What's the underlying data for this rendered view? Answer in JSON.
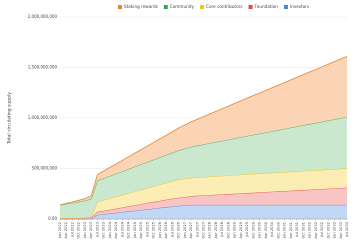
{
  "chart_data": {
    "type": "stacked_area",
    "y_label": "Total circulating supply",
    "categories": [
      "Jan 2022",
      "Apr 2022",
      "Jul 2022",
      "Oct 2022",
      "Jan 2023",
      "Apr 2023",
      "Jul 2023",
      "Oct 2023",
      "Jan 2024",
      "Apr 2024",
      "Jul 2024",
      "Oct 2024",
      "Jan 2025",
      "Apr 2025",
      "Jul 2025",
      "Oct 2025",
      "Jan 2026",
      "Apr 2026",
      "Jul 2026",
      "Oct 2026",
      "Jan 2027",
      "Apr 2027",
      "Jul 2027",
      "Oct 2027",
      "Jan 2028",
      "Apr 2028",
      "Jul 2028",
      "Oct 2028",
      "Jan 2029",
      "Apr 2029",
      "Jul 2029",
      "Oct 2029",
      "Jan 2030",
      "Apr 2030",
      "Jul 2030",
      "Oct 2030",
      "Jan 2031",
      "Apr 2031",
      "Jul 2031",
      "Oct 2031",
      "Jan 2032",
      "Apr 2032",
      "Jul 2032",
      "Oct 2032",
      "Jan 2033",
      "Apr 2033",
      "Jul 2033"
    ],
    "series": [
      {
        "name": "Investors",
        "color": "#4a86d8",
        "fill": "#c2d7f3",
        "values": [
          0,
          0,
          0,
          0,
          0,
          0,
          40000000,
          47000000,
          54000000,
          61000000,
          68000000,
          75000000,
          82000000,
          89000000,
          96000000,
          103000000,
          110000000,
          117000000,
          124000000,
          130000000,
          135000000,
          140000000,
          140000000,
          140000000,
          140000000,
          140000000,
          140000000,
          140000000,
          140000000,
          140000000,
          140000000,
          140000000,
          140000000,
          140000000,
          140000000,
          140000000,
          140000000,
          140000000,
          140000000,
          140000000,
          140000000,
          140000000,
          140000000,
          140000000,
          140000000,
          140000000,
          140000000
        ]
      },
      {
        "name": "Foundation",
        "color": "#e04848",
        "fill": "#f8c4c4",
        "values": [
          10000000,
          10000000,
          10000000,
          10000000,
          12000000,
          14000000,
          30000000,
          34000000,
          38000000,
          42000000,
          46000000,
          50000000,
          54000000,
          58000000,
          62000000,
          66000000,
          70000000,
          74000000,
          78000000,
          80000000,
          83000000,
          87000000,
          90000000,
          93000000,
          97000000,
          100000000,
          103000000,
          107000000,
          110000000,
          113000000,
          117000000,
          120000000,
          123000000,
          127000000,
          130000000,
          133000000,
          137000000,
          140000000,
          143000000,
          147000000,
          150000000,
          153000000,
          157000000,
          160000000,
          163000000,
          167000000,
          170000000
        ]
      },
      {
        "name": "Core contributors",
        "color": "#f2c318",
        "fill": "#fcedb4",
        "values": [
          0,
          0,
          0,
          0,
          0,
          5000000,
          100000000,
          106000000,
          112000000,
          118000000,
          124000000,
          130000000,
          136000000,
          142000000,
          148000000,
          154000000,
          160000000,
          166000000,
          172000000,
          180000000,
          181000000,
          181000000,
          182000000,
          182000000,
          183000000,
          183000000,
          184000000,
          184000000,
          185000000,
          185000000,
          185000000,
          186000000,
          186000000,
          186000000,
          187000000,
          187000000,
          187000000,
          188000000,
          188000000,
          188000000,
          189000000,
          189000000,
          189000000,
          190000000,
          190000000,
          190000000,
          190000000
        ]
      },
      {
        "name": "Community",
        "color": "#3aa655",
        "fill": "#c9e8cd",
        "values": [
          130000000,
          140000000,
          150000000,
          160000000,
          170000000,
          180000000,
          210000000,
          216000000,
          222000000,
          228000000,
          234000000,
          240000000,
          246000000,
          252000000,
          258000000,
          264000000,
          270000000,
          276000000,
          282000000,
          290000000,
          298000000,
          306000000,
          314000000,
          323000000,
          331000000,
          339000000,
          347000000,
          355000000,
          363000000,
          371000000,
          380000000,
          388000000,
          396000000,
          404000000,
          412000000,
          420000000,
          428000000,
          437000000,
          445000000,
          453000000,
          461000000,
          469000000,
          477000000,
          485000000,
          494000000,
          502000000,
          510000000
        ]
      },
      {
        "name": "Staking rewards",
        "color": "#e8852e",
        "fill": "#fbd4b6",
        "values": [
          0,
          5000000,
          10000000,
          15000000,
          20000000,
          30000000,
          60000000,
          72000000,
          85000000,
          97000000,
          109000000,
          122000000,
          134000000,
          146000000,
          158000000,
          171000000,
          183000000,
          195000000,
          208000000,
          220000000,
          234000000,
          248000000,
          262000000,
          276000000,
          290000000,
          304000000,
          318000000,
          332000000,
          347000000,
          361000000,
          375000000,
          389000000,
          403000000,
          417000000,
          431000000,
          445000000,
          459000000,
          473000000,
          487000000,
          501000000,
          515000000,
          529000000,
          543000000,
          557000000,
          572000000,
          586000000,
          600000000
        ]
      }
    ],
    "legend_order": [
      "Staking rewards",
      "Community",
      "Core contributors",
      "Foundation",
      "Investors"
    ],
    "ylim": [
      0,
      2000000000
    ],
    "yticks": [
      {
        "value": 0,
        "label": "0.00"
      },
      {
        "value": 500000000,
        "label": "500,000,000"
      },
      {
        "value": 1000000000,
        "label": "1,000,000,000"
      },
      {
        "value": 1500000000,
        "label": "1,500,000,000"
      },
      {
        "value": 2000000000,
        "label": "2,000,000,000"
      }
    ],
    "grid": true,
    "legend": "top"
  }
}
